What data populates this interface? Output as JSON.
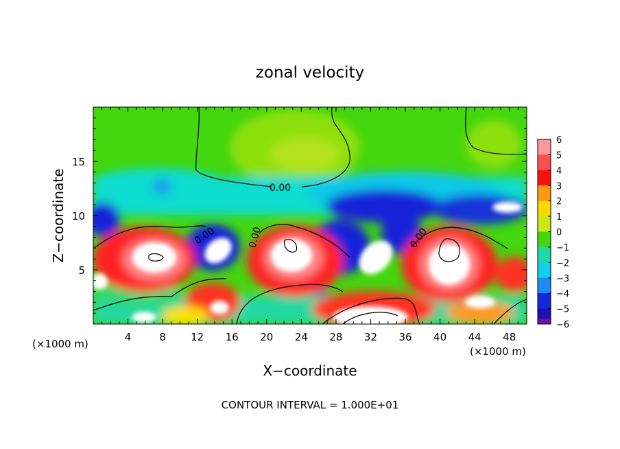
{
  "chart_data": {
    "type": "heatmap",
    "title": "zonal velocity",
    "xlabel": "X−coordinate",
    "ylabel": "Z−coordinate",
    "x_unit_left": "(×1000 m)",
    "x_unit_right": "(×1000 m)",
    "xlim": [
      0,
      50
    ],
    "ylim": [
      0,
      20
    ],
    "x_ticks": [
      4,
      8,
      12,
      16,
      20,
      24,
      28,
      32,
      36,
      40,
      44,
      48
    ],
    "y_ticks": [
      5,
      10,
      15
    ],
    "colorbar": {
      "ticks": [
        6,
        5,
        4,
        3,
        2,
        1,
        0,
        -1,
        -2,
        -3,
        -4,
        -5,
        -6
      ],
      "range": [
        -6,
        6
      ]
    },
    "contour_labels": [
      "0.00",
      "0.00",
      "0.00",
      "0.00"
    ],
    "footer": "CONTOUR INTERVAL = 1.000E+01",
    "colors": {
      "saturated_high": "#ffffff",
      "saturated_low": "#ffffff"
    }
  }
}
